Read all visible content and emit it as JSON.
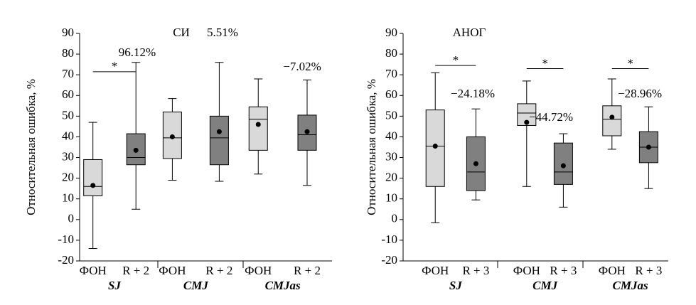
{
  "chart_data": [
    {
      "type": "box",
      "title": "СИ",
      "y_label": "Относительная ошибка, %",
      "ylim": [
        -20,
        90
      ],
      "yticks": [
        -20,
        -10,
        0,
        10,
        20,
        30,
        40,
        50,
        60,
        70,
        80,
        90
      ],
      "groups": [
        {
          "name": "SJ",
          "annotation": "96.12%",
          "bracket": {
            "label": "*",
            "y": 71.5
          },
          "boxes": [
            {
              "category": "ФОН",
              "color": "#d9d9d9",
              "min": -14,
              "q1": 11.5,
              "median": 16,
              "q3": 29,
              "max": 47,
              "mean": 16.5
            },
            {
              "category": "R + 2",
              "color": "#808080",
              "min": 5,
              "q1": 26.5,
              "median": 30,
              "q3": 41.5,
              "max": 76,
              "mean": 33.5
            }
          ]
        },
        {
          "name": "CMJ",
          "annotation": "5.51%",
          "boxes": [
            {
              "category": "ФОН",
              "color": "#d9d9d9",
              "min": 19,
              "q1": 29.5,
              "median": 39.5,
              "q3": 52,
              "max": 58.5,
              "mean": 40
            },
            {
              "category": "R + 2",
              "color": "#808080",
              "min": 18.5,
              "q1": 26.5,
              "median": 39.5,
              "q3": 50,
              "max": 76,
              "mean": 42.5
            }
          ]
        },
        {
          "name": "CMJas",
          "annotation": "−7.02%",
          "boxes": [
            {
              "category": "ФОН",
              "color": "#d9d9d9",
              "min": 22,
              "q1": 33.5,
              "median": 48.5,
              "q3": 54.5,
              "max": 68,
              "mean": 46
            },
            {
              "category": "R + 2",
              "color": "#808080",
              "min": 16.5,
              "q1": 33.5,
              "median": 41,
              "q3": 50.5,
              "max": 67.5,
              "mean": 42.5
            }
          ]
        }
      ]
    },
    {
      "type": "box",
      "title": "АНОГ",
      "y_label": "Относительная ошибка, %",
      "ylim": [
        -20,
        90
      ],
      "yticks": [
        -20,
        -10,
        0,
        10,
        20,
        30,
        40,
        50,
        60,
        70,
        80,
        90
      ],
      "groups": [
        {
          "name": "SJ",
          "annotation": "−24.18%",
          "bracket": {
            "label": "*",
            "y": 74.5
          },
          "boxes": [
            {
              "category": "ФОН",
              "color": "#d9d9d9",
              "min": -1.5,
              "q1": 16,
              "median": 35.5,
              "q3": 53,
              "max": 71,
              "mean": 35.5
            },
            {
              "category": "R + 3",
              "color": "#808080",
              "min": 9.5,
              "q1": 14,
              "median": 23,
              "q3": 40,
              "max": 53.5,
              "mean": 27
            }
          ]
        },
        {
          "name": "CMJ",
          "annotation": "−44.72%",
          "bracket": {
            "label": "*",
            "y": 73
          },
          "boxes": [
            {
              "category": "ФОН",
              "color": "#d9d9d9",
              "min": 16,
              "q1": 45.5,
              "median": 51.5,
              "q3": 56,
              "max": 67,
              "mean": 47
            },
            {
              "category": "R + 3",
              "color": "#808080",
              "min": 6,
              "q1": 17,
              "median": 23,
              "q3": 37,
              "max": 41.5,
              "mean": 26
            }
          ]
        },
        {
          "name": "CMJas",
          "annotation": "−28.96%",
          "bracket": {
            "label": "*",
            "y": 73
          },
          "boxes": [
            {
              "category": "ФОН",
              "color": "#d9d9d9",
              "min": 34,
              "q1": 40.5,
              "median": 48.5,
              "q3": 55,
              "max": 68,
              "mean": 49.5
            },
            {
              "category": "R + 3",
              "color": "#808080",
              "min": 15,
              "q1": 27.5,
              "median": 35,
              "q3": 42.5,
              "max": 54.5,
              "mean": 35
            }
          ]
        }
      ]
    }
  ]
}
